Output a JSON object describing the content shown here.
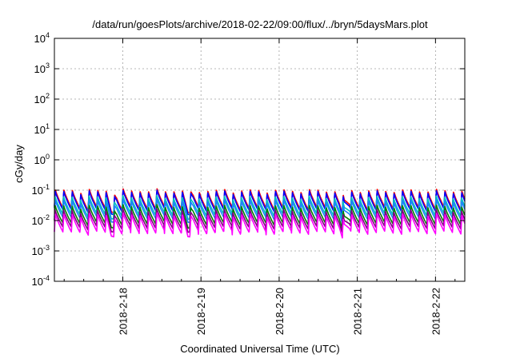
{
  "chart_data": {
    "type": "line",
    "title": "/data/run/goesPlots/archive/2018-02-22/09:00/flux/../bryn/5daysMars.plot",
    "xlabel": "Coordinated Universal Time (UTC)",
    "ylabel": "cGy/day",
    "y_scale": "log",
    "ylim": [
      0.0001,
      10000
    ],
    "yticks": [
      {
        "base": "10",
        "exp": "-4",
        "value": 0.0001
      },
      {
        "base": "10",
        "exp": "-3",
        "value": 0.001
      },
      {
        "base": "10",
        "exp": "-2",
        "value": 0.01
      },
      {
        "base": "10",
        "exp": "-1",
        "value": 0.1
      },
      {
        "base": "10",
        "exp": "0",
        "value": 1
      },
      {
        "base": "10",
        "exp": "1",
        "value": 10
      },
      {
        "base": "10",
        "exp": "2",
        "value": 100
      },
      {
        "base": "10",
        "exp": "3",
        "value": 1000
      },
      {
        "base": "10",
        "exp": "4",
        "value": 10000
      }
    ],
    "xlim": [
      "2018-02-17 03:00",
      "2018-02-22 09:00"
    ],
    "xticks": [
      {
        "label": "2018-2-18",
        "value": "2018-02-18 00:00"
      },
      {
        "label": "2018-2-19",
        "value": "2018-02-19 00:00"
      },
      {
        "label": "2018-2-20",
        "value": "2018-02-20 00:00"
      },
      {
        "label": "2018-2-21",
        "value": "2018-02-21 00:00"
      },
      {
        "label": "2018-2-22",
        "value": "2018-02-22 00:00"
      }
    ],
    "grid": true,
    "legend": "none",
    "pattern": {
      "description_free_params": true,
      "period_hours": 2.6,
      "dip_hours": [
        17.5,
        41.0,
        89.0
      ]
    },
    "series": [
      {
        "color": "#ff0000",
        "peak": 0.1,
        "trough": 0.025
      },
      {
        "color": "#0000ff",
        "peak": 0.09,
        "trough": 0.022
      },
      {
        "color": "#00c0c0",
        "peak": 0.06,
        "trough": 0.016
      },
      {
        "color": "#2080ff",
        "peak": 0.045,
        "trough": 0.012
      },
      {
        "color": "#008000",
        "peak": 0.03,
        "trough": 0.008
      },
      {
        "color": "#800080",
        "peak": 0.022,
        "trough": 0.006
      },
      {
        "color": "#ff00ff",
        "peak": 0.016,
        "trough": 0.004
      }
    ]
  }
}
